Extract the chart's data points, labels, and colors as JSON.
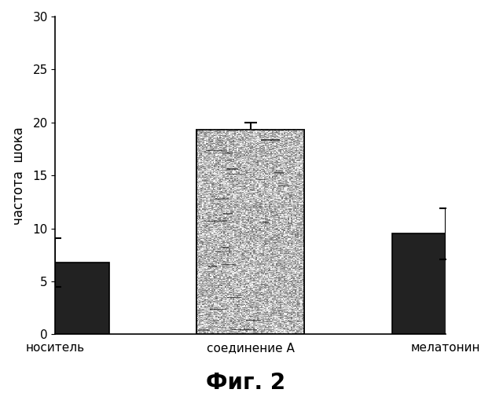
{
  "categories": [
    "носитель",
    "соединение A",
    "мелатонин"
  ],
  "values": [
    6.8,
    19.3,
    9.5
  ],
  "errors": [
    2.3,
    0.7,
    2.4
  ],
  "bar_colors": [
    "#222222",
    "#d8d8d8",
    "#222222"
  ],
  "bar_hatches": [
    null,
    null,
    null
  ],
  "ylabel": "частота  шока",
  "ylim": [
    0,
    30
  ],
  "yticks": [
    0,
    5,
    10,
    15,
    20,
    25,
    30
  ],
  "figure_label": "Фиг. 2",
  "background_color": "#ffffff",
  "bar_width": 0.55,
  "edge_color": "#000000",
  "x_positions": [
    0,
    1,
    2
  ]
}
